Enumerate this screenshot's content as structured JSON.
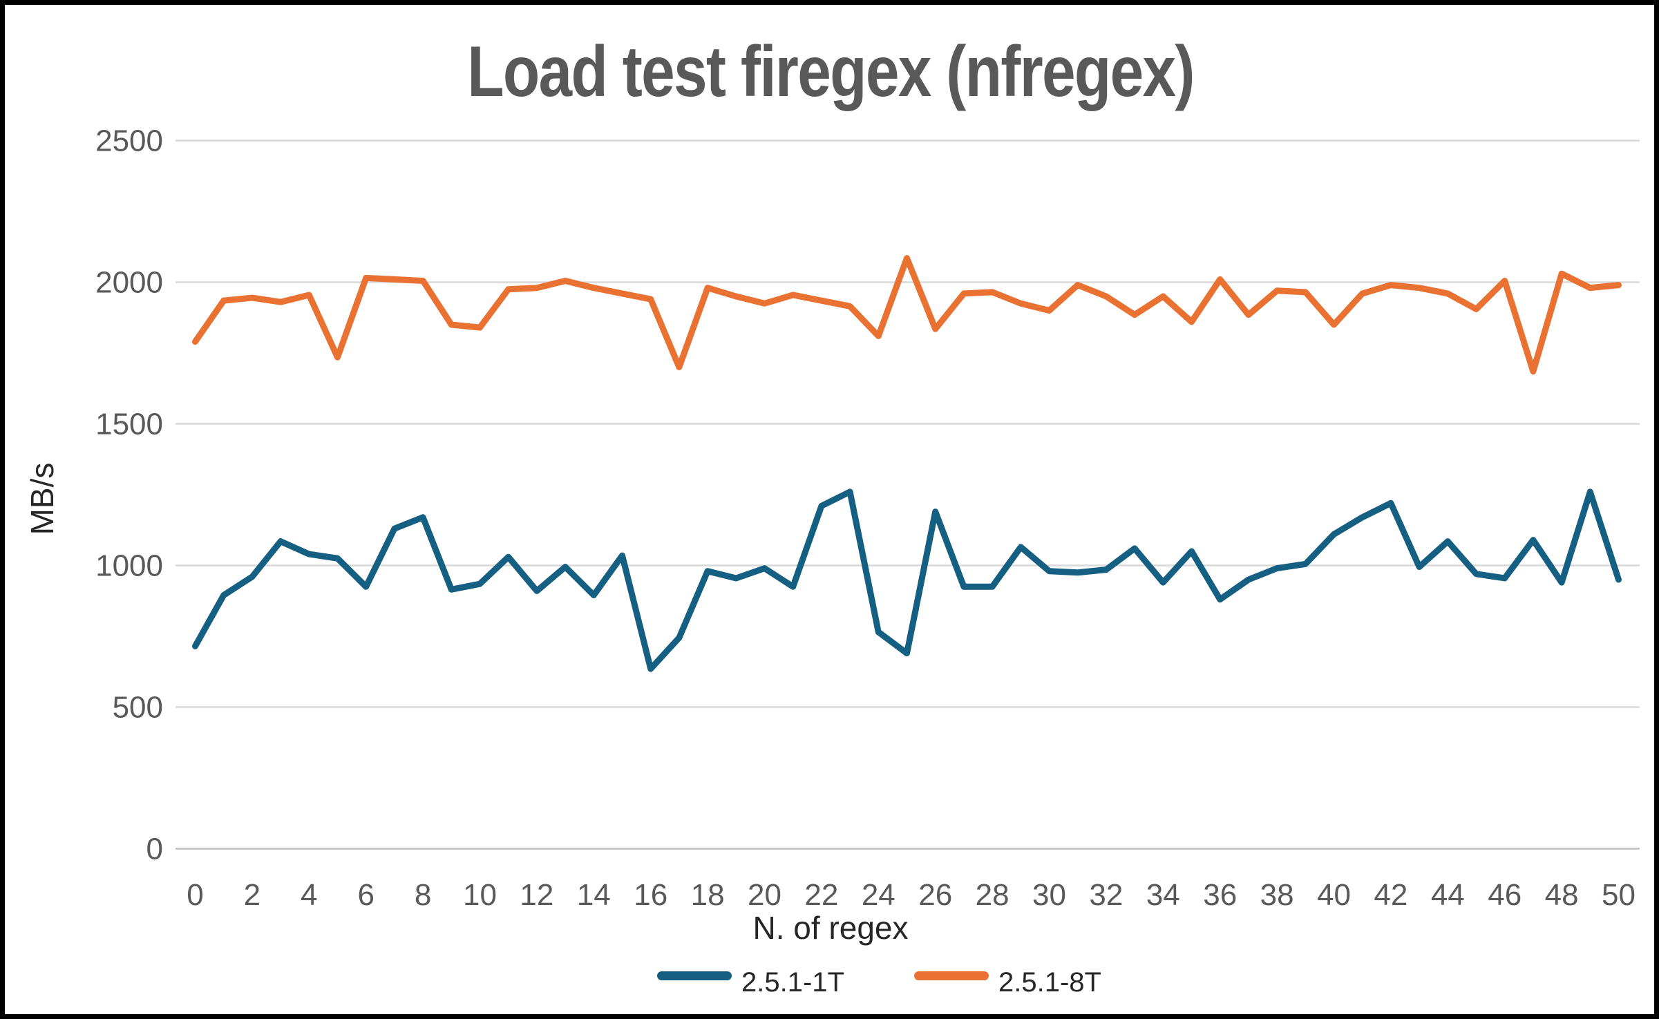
{
  "chart_data": {
    "type": "line",
    "title": "Load test firegex (nfregex)",
    "xlabel": "N. of regex",
    "ylabel": "MB/s",
    "x": [
      0,
      1,
      2,
      3,
      4,
      5,
      6,
      7,
      8,
      9,
      10,
      11,
      12,
      13,
      14,
      15,
      16,
      17,
      18,
      19,
      20,
      21,
      22,
      23,
      24,
      25,
      26,
      27,
      28,
      29,
      30,
      31,
      32,
      33,
      34,
      35,
      36,
      37,
      38,
      39,
      40,
      41,
      42,
      43,
      44,
      45,
      46,
      47,
      48,
      49,
      50
    ],
    "x_tick_step": 2,
    "x_tick_labels": [
      "0",
      "2",
      "4",
      "6",
      "8",
      "10",
      "12",
      "14",
      "16",
      "18",
      "20",
      "22",
      "24",
      "26",
      "28",
      "30",
      "32",
      "34",
      "36",
      "38",
      "40",
      "42",
      "44",
      "46",
      "48",
      "50"
    ],
    "y_ticks": [
      0,
      500,
      1000,
      1500,
      2000,
      2500
    ],
    "ylim": [
      0,
      2500
    ],
    "grid": true,
    "legend_position": "bottom",
    "series": [
      {
        "name": "2.5.1-1T",
        "color": "#156082",
        "values": [
          715,
          895,
          960,
          1085,
          1040,
          1025,
          925,
          1130,
          1170,
          915,
          935,
          1030,
          910,
          995,
          895,
          1035,
          635,
          745,
          980,
          955,
          990,
          925,
          1210,
          1260,
          765,
          690,
          1190,
          925,
          925,
          1065,
          980,
          975,
          985,
          1060,
          940,
          1050,
          880,
          950,
          990,
          1005,
          1110,
          1170,
          1220,
          995,
          1085,
          970,
          955,
          1090,
          940,
          1260,
          950
        ]
      },
      {
        "name": "2.5.1-8T",
        "color": "#E97132",
        "values": [
          1790,
          1935,
          1945,
          1930,
          1955,
          1735,
          2015,
          2010,
          2005,
          1850,
          1840,
          1975,
          1980,
          2005,
          1980,
          1960,
          1940,
          1700,
          1980,
          1950,
          1925,
          1955,
          1935,
          1915,
          1810,
          2085,
          1835,
          1960,
          1965,
          1925,
          1900,
          1990,
          1950,
          1885,
          1950,
          1860,
          2010,
          1885,
          1970,
          1965,
          1850,
          1960,
          1990,
          1980,
          1960,
          1905,
          2005,
          1685,
          2030,
          1980,
          1990
        ]
      }
    ]
  },
  "styles": {
    "title_color": "#595959",
    "tick_color": "#595959",
    "text_color": "#262626",
    "grid_color": "#D9D9D9",
    "axis_line_color": "#BFBFBF",
    "background": "#ffffff",
    "border_color": "#000000"
  }
}
